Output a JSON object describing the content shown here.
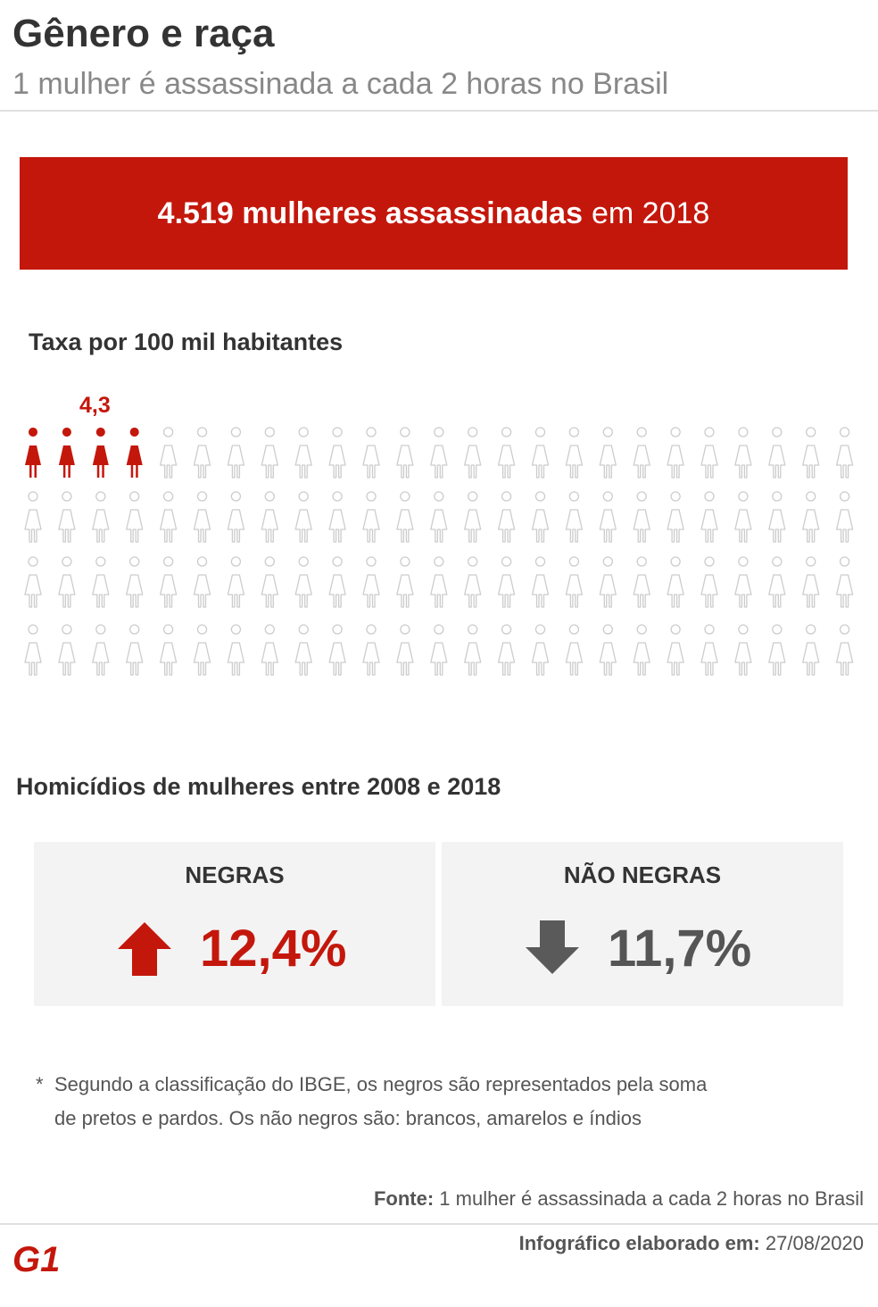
{
  "header": {
    "title": "Gênero e raça",
    "subtitle": "1 mulher é assassinada a cada 2 horas no Brasil"
  },
  "banner": {
    "bold": "4.519 mulheres assassinadas",
    "rest": "em 2018"
  },
  "rate": {
    "title": "Taxa por 100 mil habitantes",
    "label": "4,3",
    "value": 4.3,
    "total_figures": 100
  },
  "homicides": {
    "title": "Homicídios de mulheres entre 2008 e 2018",
    "boxes": [
      {
        "label": "NEGRAS",
        "value": "12,4%",
        "direction": "up",
        "color": "#c4170c",
        "icon": "arrow-up-icon"
      },
      {
        "label": "NÃO NEGRAS",
        "value": "11,7%",
        "direction": "down",
        "color": "#555555",
        "icon": "arrow-down-icon"
      }
    ]
  },
  "note": {
    "star": "*",
    "line1": "Segundo a classificação do IBGE, os negros são representados pela soma",
    "line2": "de pretos e pardos. Os não negros são: brancos, amarelos e índios"
  },
  "footer": {
    "source_label": "Fonte:",
    "source_text": "1 mulher é assassinada a cada 2 horas no Brasil",
    "date_label": "Infográfico elaborado em:",
    "date_value": "27/08/2020",
    "logo_text": "G1"
  },
  "colors": {
    "accent": "#c4170c",
    "figure_outline": "#cccccc",
    "box_bg": "#f3f3f3"
  }
}
